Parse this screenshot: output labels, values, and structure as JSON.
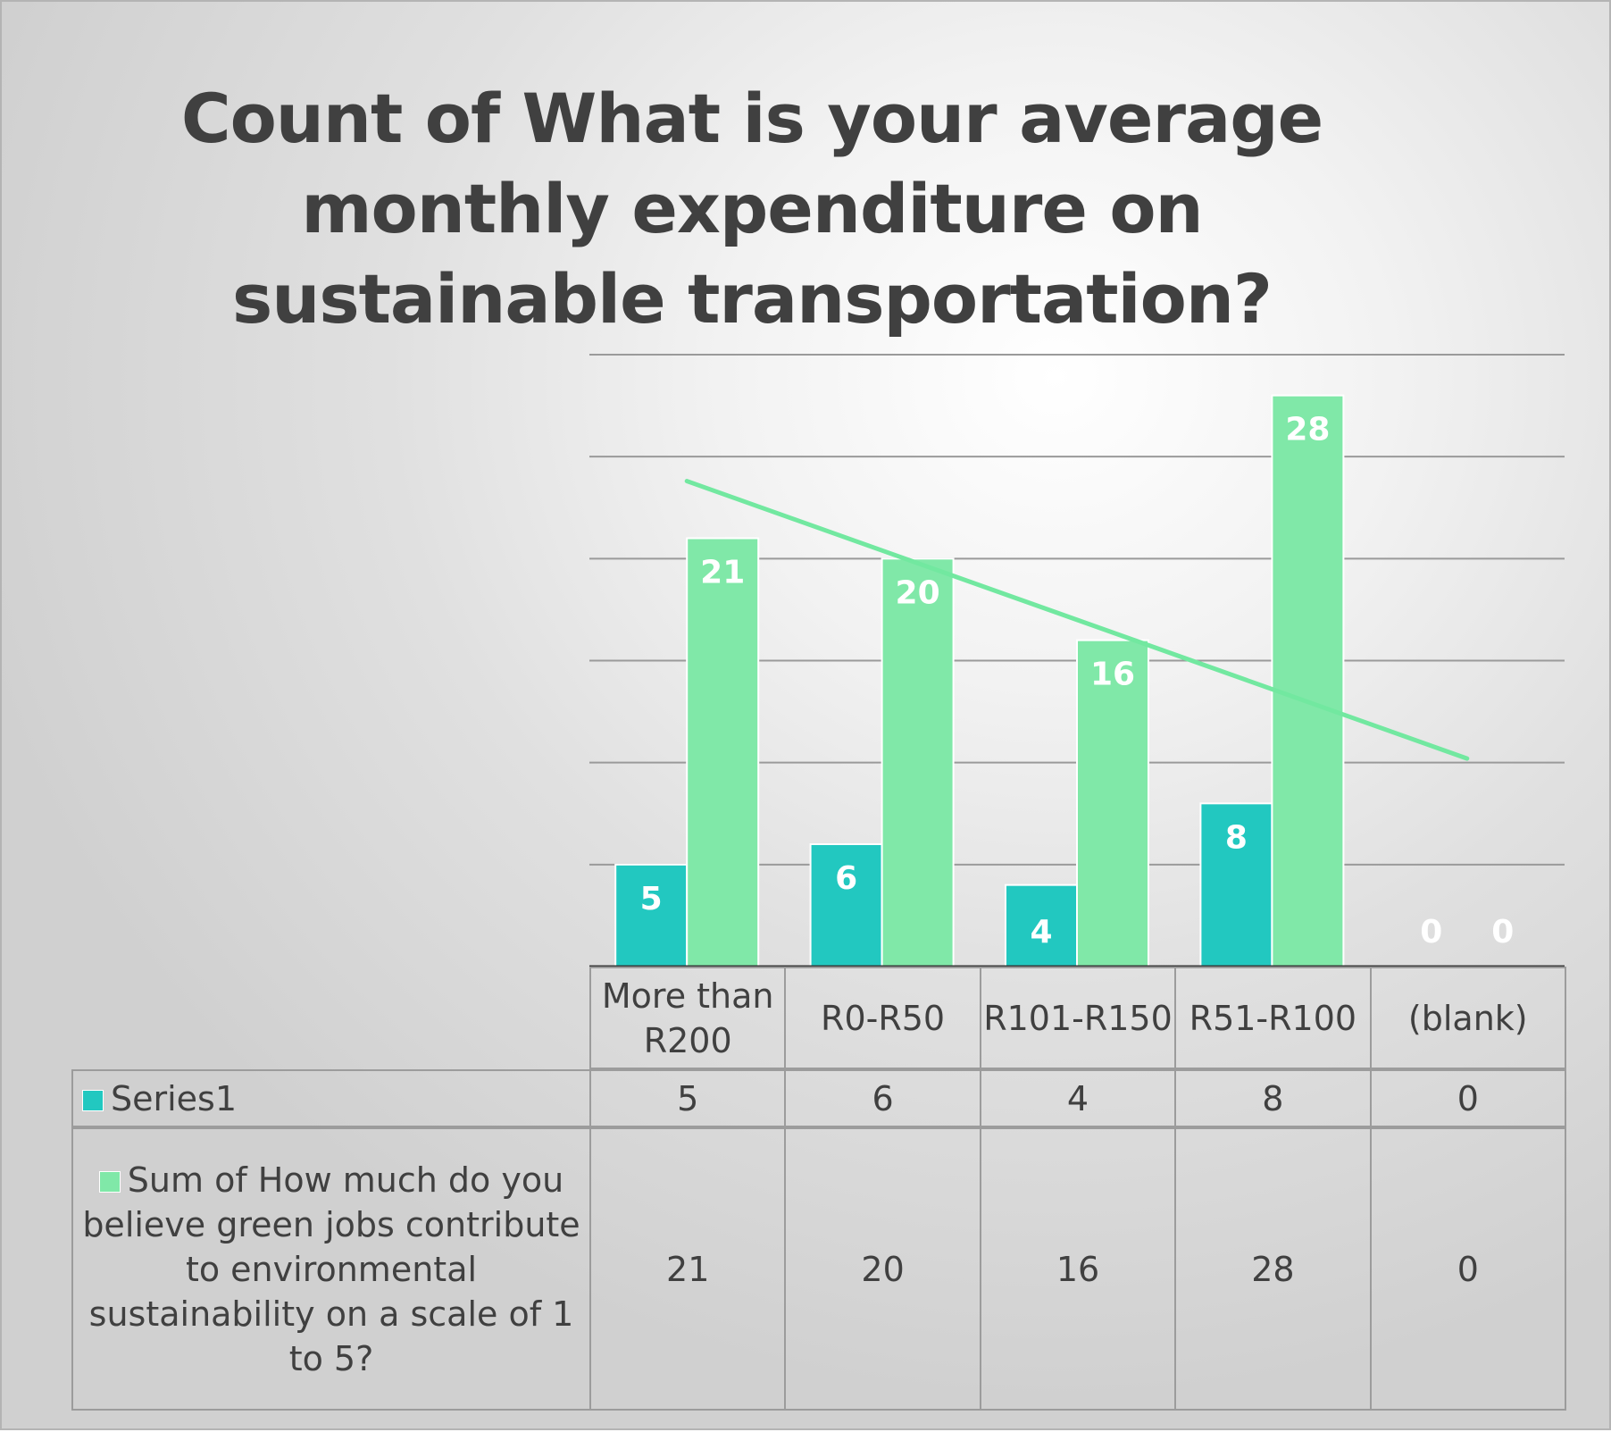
{
  "chart_data": {
    "type": "bar",
    "title": "Count of What is your average monthly expenditure on sustainable transportation?",
    "categories": [
      "More than R200",
      "R0-R50",
      "R101-R150",
      "R51-R100",
      "(blank)"
    ],
    "series": [
      {
        "name": "Series1",
        "values": [
          5,
          6,
          4,
          8,
          0
        ],
        "color": "#22c8c0"
      },
      {
        "name": "Sum of How much do you believe green jobs contribute to environmental sustainability on a scale of 1 to 5?",
        "values": [
          21,
          20,
          16,
          28,
          0
        ],
        "color": "#80e8a8"
      }
    ],
    "trendline": {
      "series": 1,
      "type": "linear",
      "color": "#72e8a0"
    },
    "ylim": [
      0,
      30
    ],
    "gridline_step": 5,
    "grid": true,
    "data_labels": true,
    "legend": "data table below plot",
    "xlabel": "",
    "ylabel": ""
  }
}
